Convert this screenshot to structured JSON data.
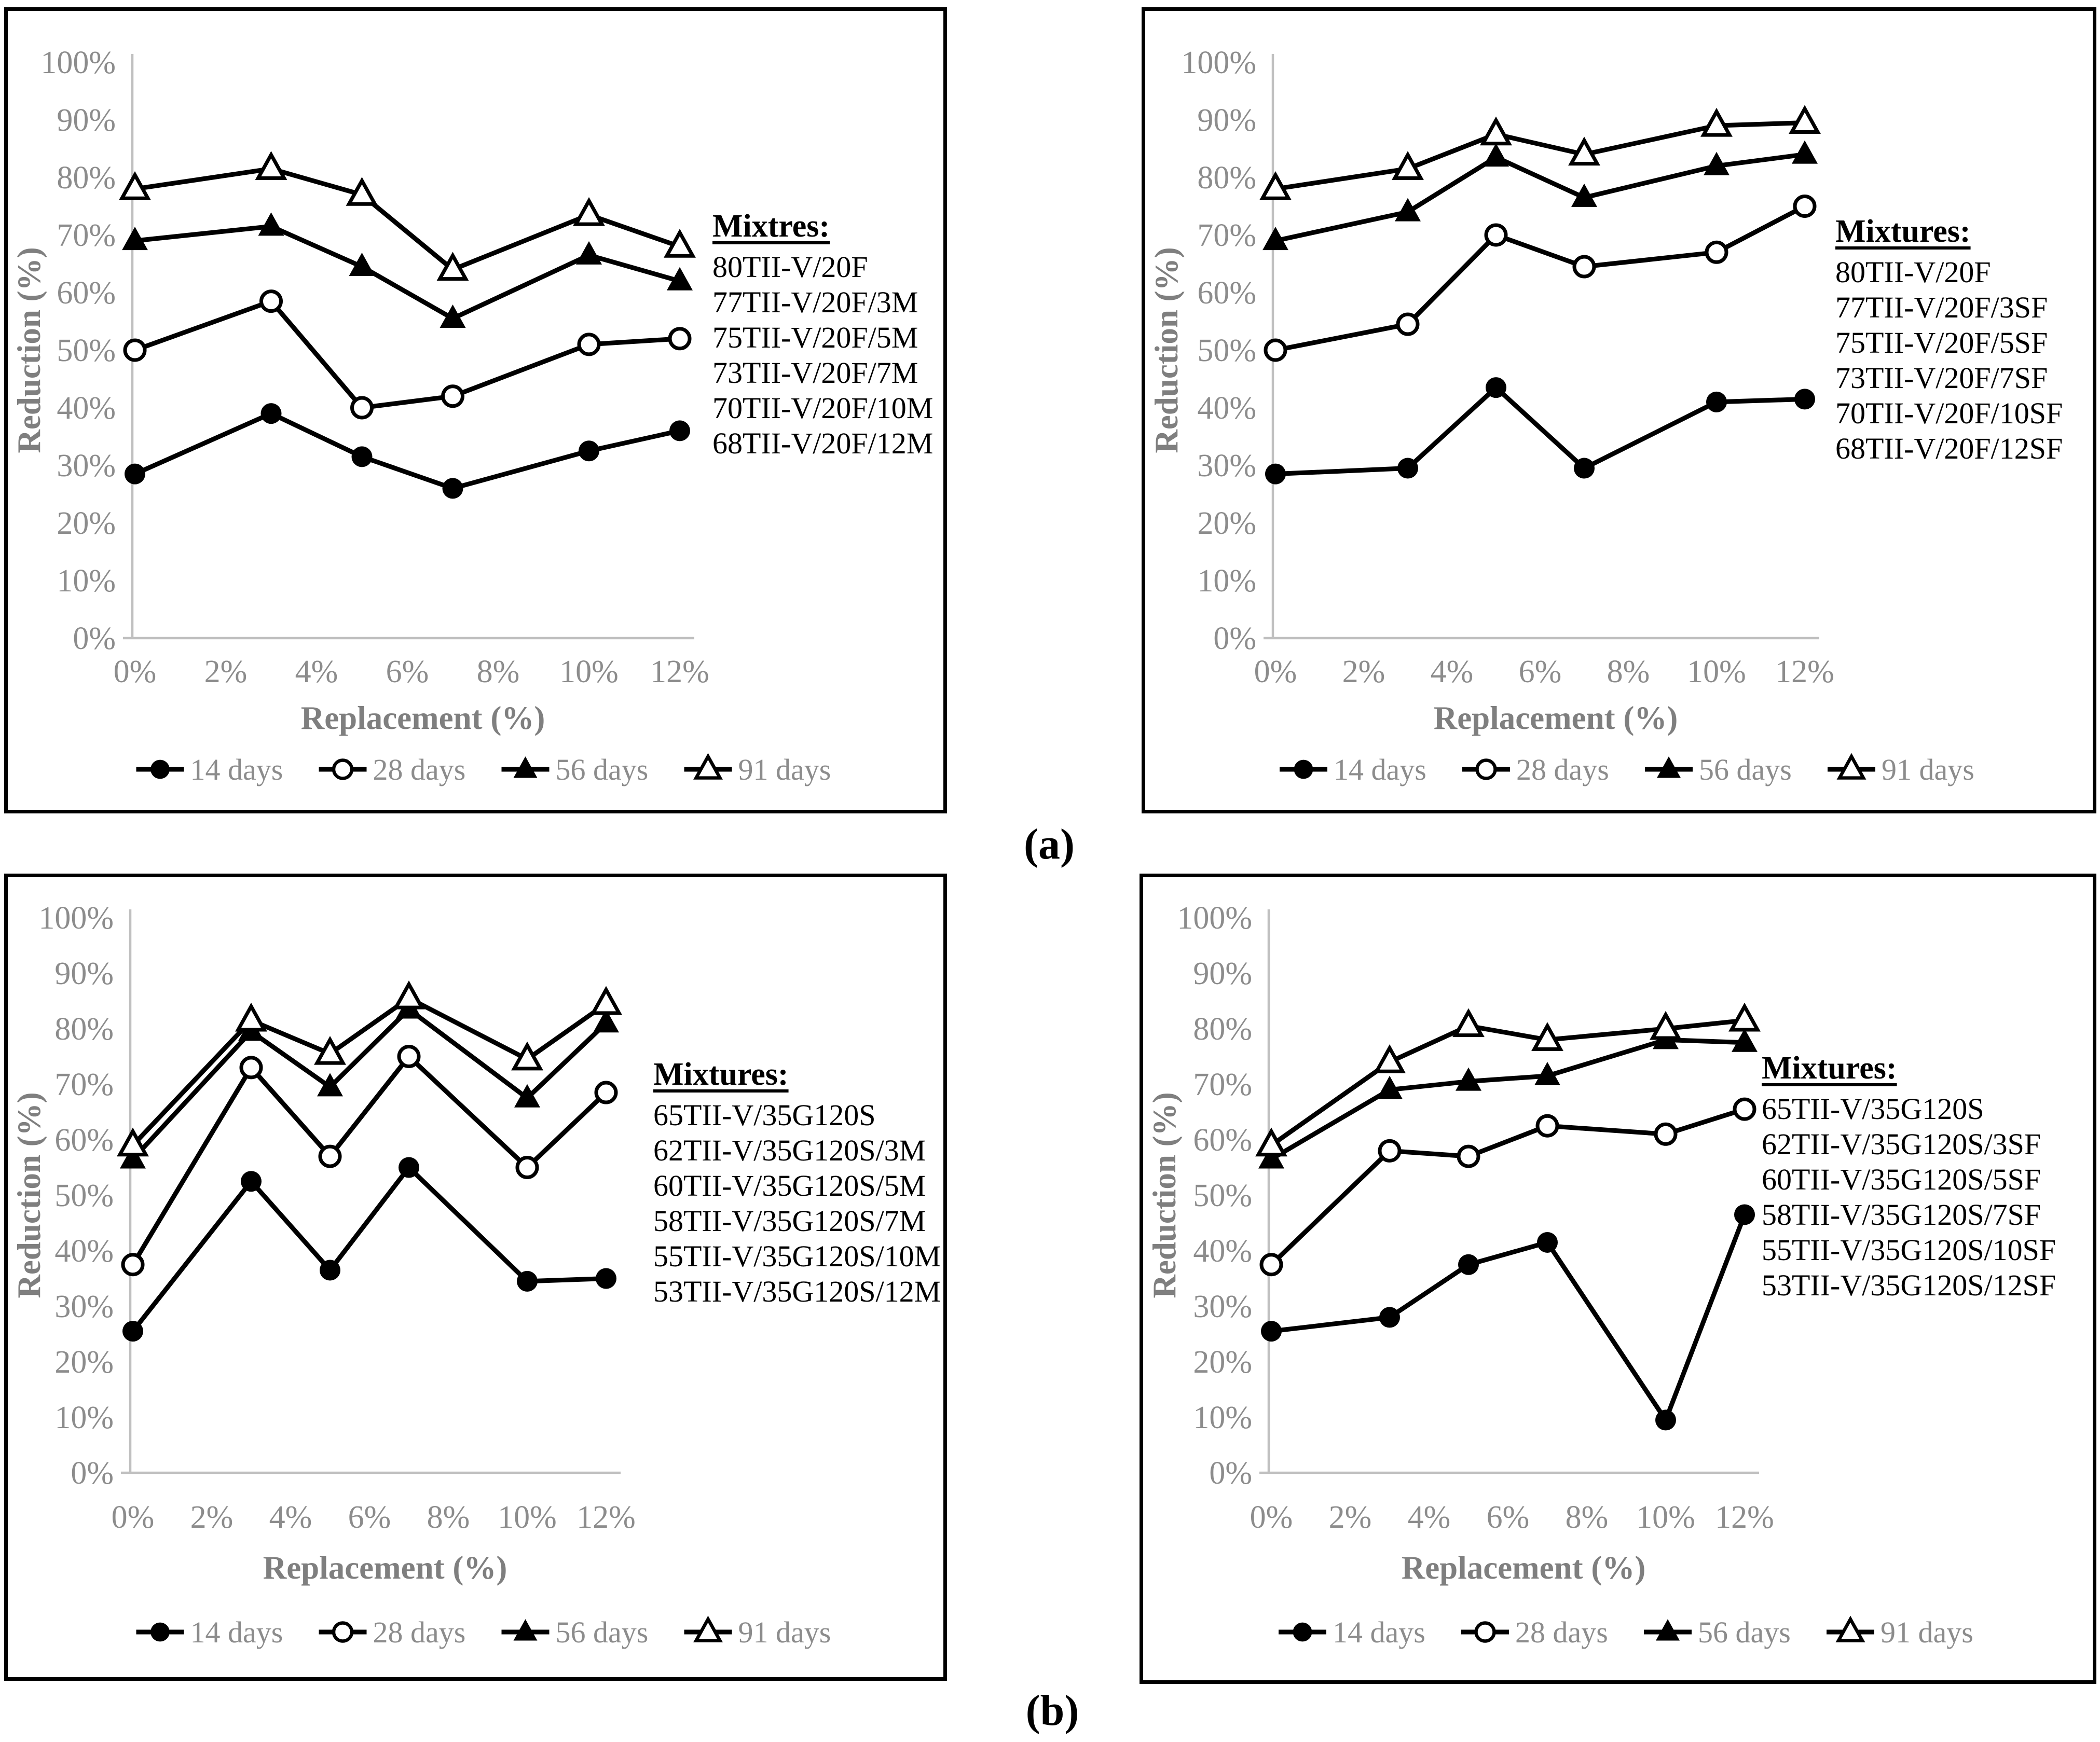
{
  "figure": {
    "panel_a_label": "(a)",
    "panel_b_label": "(b)"
  },
  "colors": {
    "background": "#ffffff",
    "panel_border": "#000000",
    "series": "#000000",
    "axis_line": "#c0c0c0",
    "tick_label": "#8c8c8c",
    "axis_title": "#7f7f7f",
    "legend_text": "#8c8c8c",
    "mixtures_text": "#000000"
  },
  "chart_data": [
    {
      "position": "top-left",
      "figure_group": "(a)",
      "type": "line",
      "xlabel": "Replacement (%)",
      "ylabel": "Reduction (%)",
      "xlim": [
        0,
        13
      ],
      "ylim": [
        0,
        100
      ],
      "grid": false,
      "legend_position": "bottom",
      "x_values": [
        0,
        3,
        5,
        7,
        10,
        12
      ],
      "x_tick_labels": [
        "0%",
        "2%",
        "4%",
        "6%",
        "8%",
        "10%",
        "12%"
      ],
      "y_tick_labels": [
        "0%",
        "10%",
        "20%",
        "30%",
        "40%",
        "50%",
        "60%",
        "70%",
        "80%",
        "90%",
        "100%"
      ],
      "series": [
        {
          "name": "14 days",
          "marker": "filled-circle",
          "values": [
            28.5,
            39,
            31.5,
            26,
            32.5,
            36
          ]
        },
        {
          "name": "28 days",
          "marker": "open-circle",
          "values": [
            50,
            58.5,
            40,
            42,
            51,
            52
          ]
        },
        {
          "name": "56 days",
          "marker": "filled-triangle",
          "values": [
            69,
            71.5,
            64.5,
            55.5,
            66.5,
            62
          ]
        },
        {
          "name": "91 days",
          "marker": "open-triangle",
          "values": [
            78,
            81.5,
            77,
            64,
            73.5,
            68
          ]
        }
      ],
      "mixtures": {
        "header": "Mixtres:",
        "items": [
          "80TII-V/20F",
          "77TII-V/20F/3M",
          "75TII-V/20F/5M",
          "73TII-V/20F/7M",
          "70TII-V/20F/10M",
          "68TII-V/20F/12M"
        ]
      }
    },
    {
      "position": "top-right",
      "figure_group": "(a)",
      "type": "line",
      "xlabel": "Replacement (%)",
      "ylabel": "Reduction (%)",
      "xlim": [
        0,
        13
      ],
      "ylim": [
        0,
        100
      ],
      "grid": false,
      "legend_position": "bottom",
      "x_values": [
        0,
        3,
        5,
        7,
        10,
        12
      ],
      "x_tick_labels": [
        "0%",
        "2%",
        "4%",
        "6%",
        "8%",
        "10%",
        "12%"
      ],
      "y_tick_labels": [
        "0%",
        "10%",
        "20%",
        "30%",
        "40%",
        "50%",
        "60%",
        "70%",
        "80%",
        "90%",
        "100%"
      ],
      "series": [
        {
          "name": "14 days",
          "marker": "filled-circle",
          "values": [
            28.5,
            29.5,
            43.5,
            29.5,
            41,
            41.5
          ]
        },
        {
          "name": "28 days",
          "marker": "open-circle",
          "values": [
            50,
            54.5,
            70,
            64.5,
            67,
            75
          ]
        },
        {
          "name": "56 days",
          "marker": "filled-triangle",
          "values": [
            69,
            74,
            83.5,
            76.5,
            82,
            84
          ]
        },
        {
          "name": "91 days",
          "marker": "open-triangle",
          "values": [
            78,
            81.5,
            87.5,
            84,
            89,
            89.5
          ]
        }
      ],
      "mixtures": {
        "header": "Mixtures:",
        "items": [
          "80TII-V/20F",
          "77TII-V/20F/3SF",
          "75TII-V/20F/5SF",
          "73TII-V/20F/7SF",
          "70TII-V/20F/10SF",
          "68TII-V/20F/12SF"
        ]
      }
    },
    {
      "position": "bottom-left",
      "figure_group": "(b)",
      "type": "line",
      "xlabel": "Replacement (%)",
      "ylabel": "Reduction (%)",
      "xlim": [
        0,
        13
      ],
      "ylim": [
        0,
        100
      ],
      "grid": false,
      "legend_position": "bottom",
      "x_values": [
        0,
        3,
        5,
        7,
        10,
        12
      ],
      "x_tick_labels": [
        "0%",
        "2%",
        "4%",
        "6%",
        "8%",
        "10%",
        "12%"
      ],
      "y_tick_labels": [
        "0%",
        "10%",
        "20%",
        "30%",
        "40%",
        "50%",
        "60%",
        "70%",
        "80%",
        "90%",
        "100%"
      ],
      "series": [
        {
          "name": "14 days",
          "marker": "filled-circle",
          "values": [
            25.5,
            52.5,
            36.5,
            55,
            34.5,
            35
          ]
        },
        {
          "name": "28 days",
          "marker": "open-circle",
          "values": [
            37.5,
            73,
            57,
            75,
            55,
            68.5
          ]
        },
        {
          "name": "56 days",
          "marker": "filled-triangle",
          "values": [
            56.5,
            79.5,
            69.5,
            83.5,
            67.5,
            81
          ]
        },
        {
          "name": "91 days",
          "marker": "open-triangle",
          "values": [
            59,
            81.5,
            75.5,
            85.5,
            74.5,
            84.5
          ]
        }
      ],
      "mixtures": {
        "header": "Mixtures:",
        "items": [
          "65TII-V/35G120S",
          "62TII-V/35G120S/3M",
          "60TII-V/35G120S/5M",
          "58TII-V/35G120S/7M",
          "55TII-V/35G120S/10M",
          "53TII-V/35G120S/12M"
        ]
      }
    },
    {
      "position": "bottom-right",
      "figure_group": "(b)",
      "type": "line",
      "xlabel": "Replacement (%)",
      "ylabel": "Reduction (%)",
      "xlim": [
        0,
        13
      ],
      "ylim": [
        0,
        100
      ],
      "grid": false,
      "legend_position": "bottom",
      "x_values": [
        0,
        3,
        5,
        7,
        10,
        12
      ],
      "x_tick_labels": [
        "0%",
        "2%",
        "4%",
        "6%",
        "8%",
        "10%",
        "12%"
      ],
      "y_tick_labels": [
        "0%",
        "10%",
        "20%",
        "30%",
        "40%",
        "50%",
        "60%",
        "70%",
        "80%",
        "90%",
        "100%"
      ],
      "series": [
        {
          "name": "14 days",
          "marker": "filled-circle",
          "values": [
            25.5,
            28,
            37.5,
            41.5,
            9.5,
            46.5
          ]
        },
        {
          "name": "28 days",
          "marker": "open-circle",
          "values": [
            37.5,
            58,
            57,
            62.5,
            61,
            65.5
          ]
        },
        {
          "name": "56 days",
          "marker": "filled-triangle",
          "values": [
            56.5,
            69,
            70.5,
            71.5,
            78,
            77.5
          ]
        },
        {
          "name": "91 days",
          "marker": "open-triangle",
          "values": [
            59,
            74,
            80.5,
            78,
            80,
            81.5
          ]
        }
      ],
      "mixtures": {
        "header": "Mixtures:",
        "items": [
          "65TII-V/35G120S",
          "62TII-V/35G120S/3SF",
          "60TII-V/35G120S/5SF",
          "58TII-V/35G120S/7SF",
          "55TII-V/35G120S/10SF",
          "53TII-V/35G120S/12SF"
        ]
      }
    }
  ]
}
